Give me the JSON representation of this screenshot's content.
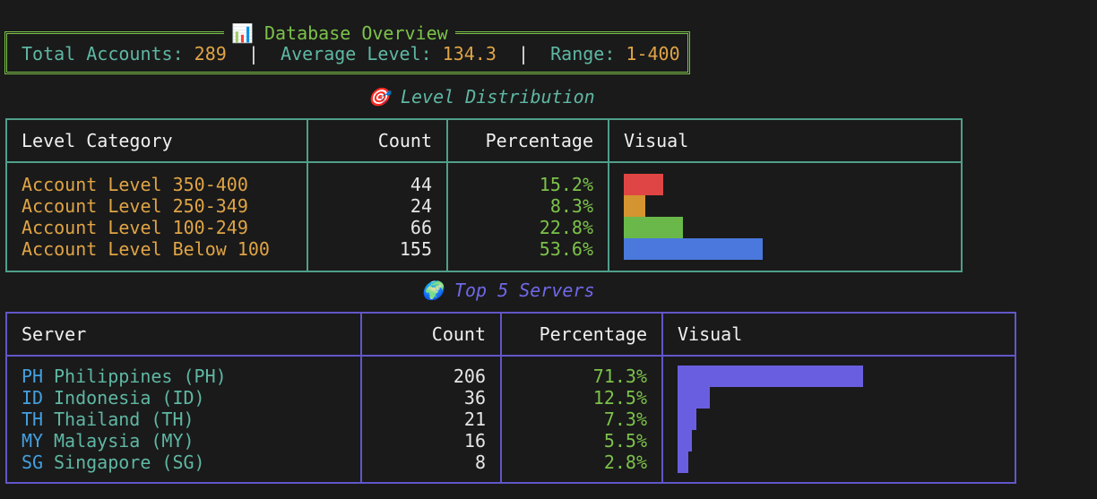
{
  "overview": {
    "title": "Database Overview",
    "title_icon": "📊",
    "total_label": "Total Accounts:",
    "total_value": "289",
    "avg_label": "Average Level:",
    "avg_value": "134.3",
    "range_label": "Range:",
    "range_value": "1-400",
    "separator": "|"
  },
  "level_section": {
    "title": "Level Distribution",
    "title_icon": "🎯",
    "title_color": "#5fb7a3",
    "headers": [
      "Level Category",
      "Count",
      "Percentage",
      "Visual"
    ],
    "rows": [
      {
        "category": "Account Level 350-400",
        "count": "44",
        "percentage": "15.2%",
        "fraction": 0.152,
        "color": "#e04545"
      },
      {
        "category": "Account Level 250-349",
        "count": "24",
        "percentage": "8.3%",
        "fraction": 0.083,
        "color": "#d4942f"
      },
      {
        "category": "Account Level 100-249",
        "count": "66",
        "percentage": "22.8%",
        "fraction": 0.228,
        "color": "#6ab84a"
      },
      {
        "category": "Account Level Below 100",
        "count": "155",
        "percentage": "53.6%",
        "fraction": 0.536,
        "color": "#4a78dd"
      }
    ]
  },
  "server_section": {
    "title": "Top 5 Servers",
    "title_icon": "🌍",
    "title_color": "#7068e8",
    "headers": [
      "Server",
      "Count",
      "Percentage",
      "Visual"
    ],
    "bar_color": "#6a5ee0",
    "rows": [
      {
        "code": "PH",
        "name": "Philippines (PH)",
        "count": "206",
        "percentage": "71.3%",
        "fraction": 0.713
      },
      {
        "code": "ID",
        "name": "Indonesia (ID)",
        "count": "36",
        "percentage": "12.5%",
        "fraction": 0.125
      },
      {
        "code": "TH",
        "name": "Thailand (TH)",
        "count": "21",
        "percentage": "7.3%",
        "fraction": 0.073
      },
      {
        "code": "MY",
        "name": "Malaysia (MY)",
        "count": "16",
        "percentage": "5.5%",
        "fraction": 0.055
      },
      {
        "code": "SG",
        "name": "Singapore (SG)",
        "count": "8",
        "percentage": "2.8%",
        "fraction": 0.028
      }
    ]
  }
}
